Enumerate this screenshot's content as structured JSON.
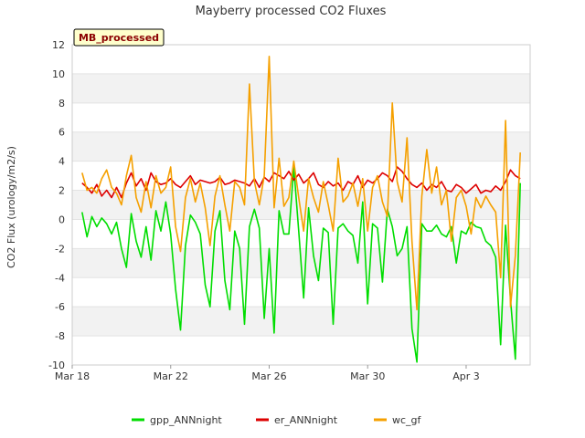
{
  "chart_data": {
    "type": "line",
    "title": "Mayberry processed CO2 Fluxes",
    "ylabel": "CO2 Flux (urology/m2/s)",
    "xlabel": "",
    "tag": "MB_processed",
    "ylim": [
      -10,
      12
    ],
    "yticks": [
      -10,
      -8,
      -6,
      -4,
      -2,
      0,
      2,
      4,
      6,
      8,
      10,
      12
    ],
    "x_range_days": [
      0,
      18.6
    ],
    "xticks": [
      {
        "day": 0,
        "label": "Mar 18"
      },
      {
        "day": 4,
        "label": "Mar 22"
      },
      {
        "day": 8,
        "label": "Mar 26"
      },
      {
        "day": 12,
        "label": "Mar 30"
      },
      {
        "day": 16,
        "label": "Apr 3"
      }
    ],
    "grid": "horizontal-bands",
    "legend_position": "bottom-center",
    "series": [
      {
        "name": "gpp_ANNnight",
        "color": "#00dd00",
        "x": [
          0.4,
          0.6,
          0.8,
          1.0,
          1.2,
          1.4,
          1.6,
          1.8,
          2.0,
          2.2,
          2.4,
          2.6,
          2.8,
          3.0,
          3.2,
          3.4,
          3.6,
          3.8,
          4.0,
          4.2,
          4.4,
          4.6,
          4.8,
          5.0,
          5.2,
          5.4,
          5.6,
          5.8,
          6.0,
          6.2,
          6.4,
          6.6,
          6.8,
          7.0,
          7.2,
          7.4,
          7.6,
          7.8,
          8.0,
          8.2,
          8.4,
          8.6,
          8.8,
          9.0,
          9.2,
          9.4,
          9.6,
          9.8,
          10.0,
          10.2,
          10.4,
          10.6,
          10.8,
          11.0,
          11.2,
          11.4,
          11.6,
          11.8,
          12.0,
          12.2,
          12.4,
          12.6,
          12.8,
          13.0,
          13.2,
          13.4,
          13.6,
          13.8,
          14.0,
          14.2,
          14.4,
          14.6,
          14.8,
          15.0,
          15.2,
          15.4,
          15.6,
          15.8,
          16.0,
          16.2,
          16.4,
          16.6,
          16.8,
          17.0,
          17.2,
          17.4,
          17.6,
          17.8,
          18.0,
          18.2
        ],
        "y": [
          0.5,
          -1.2,
          0.2,
          -0.5,
          0.1,
          -0.3,
          -1.0,
          -0.2,
          -2.0,
          -3.3,
          0.4,
          -1.5,
          -2.6,
          -0.5,
          -2.8,
          0.6,
          -0.8,
          1.2,
          -1.0,
          -4.8,
          -7.6,
          -1.8,
          0.3,
          -0.2,
          -1.0,
          -4.5,
          -6.0,
          -0.8,
          0.6,
          -4.2,
          -6.2,
          -0.8,
          -2.0,
          -7.2,
          -0.5,
          0.7,
          -0.6,
          -6.8,
          -2.0,
          -7.8,
          0.6,
          -1.0,
          -1.0,
          3.6,
          -0.8,
          -5.4,
          0.8,
          -2.5,
          -4.2,
          -0.6,
          -0.9,
          -7.2,
          -0.6,
          -0.3,
          -0.8,
          -1.1,
          -3.0,
          1.2,
          -5.8,
          -0.3,
          -0.6,
          -4.3,
          0.7,
          -0.5,
          -2.5,
          -2.0,
          -0.5,
          -7.5,
          -9.8,
          -0.3,
          -0.8,
          -0.8,
          -0.4,
          -1.0,
          -1.2,
          -0.5,
          -3.0,
          -0.8,
          -1.0,
          -0.2,
          -0.5,
          -0.6,
          -1.5,
          -1.8,
          -2.6,
          -8.6,
          -0.4,
          -5.5,
          -9.6,
          2.5
        ]
      },
      {
        "name": "er_ANNnight",
        "color": "#dd0000",
        "x": [
          0.4,
          0.6,
          0.8,
          1.0,
          1.2,
          1.4,
          1.6,
          1.8,
          2.0,
          2.2,
          2.4,
          2.6,
          2.8,
          3.0,
          3.2,
          3.4,
          3.6,
          3.8,
          4.0,
          4.2,
          4.4,
          4.6,
          4.8,
          5.0,
          5.2,
          5.4,
          5.6,
          5.8,
          6.0,
          6.2,
          6.4,
          6.6,
          6.8,
          7.0,
          7.2,
          7.4,
          7.6,
          7.8,
          8.0,
          8.2,
          8.4,
          8.6,
          8.8,
          9.0,
          9.2,
          9.4,
          9.6,
          9.8,
          10.0,
          10.2,
          10.4,
          10.6,
          10.8,
          11.0,
          11.2,
          11.4,
          11.6,
          11.8,
          12.0,
          12.2,
          12.4,
          12.6,
          12.8,
          13.0,
          13.2,
          13.4,
          13.6,
          13.8,
          14.0,
          14.2,
          14.4,
          14.6,
          14.8,
          15.0,
          15.2,
          15.4,
          15.6,
          15.8,
          16.0,
          16.2,
          16.4,
          16.6,
          16.8,
          17.0,
          17.2,
          17.4,
          17.6,
          17.8,
          18.0,
          18.2
        ],
        "y": [
          2.5,
          2.2,
          1.8,
          2.4,
          1.6,
          2.0,
          1.5,
          2.2,
          1.5,
          2.5,
          3.2,
          2.3,
          2.8,
          2.0,
          3.2,
          2.6,
          2.4,
          2.5,
          2.8,
          2.4,
          2.2,
          2.6,
          3.0,
          2.4,
          2.7,
          2.6,
          2.5,
          2.6,
          2.9,
          2.4,
          2.5,
          2.7,
          2.6,
          2.5,
          2.3,
          2.8,
          2.2,
          2.9,
          2.6,
          3.2,
          3.0,
          2.8,
          3.3,
          2.7,
          3.1,
          2.5,
          2.8,
          3.2,
          2.4,
          2.2,
          2.6,
          2.3,
          2.5,
          2.0,
          2.6,
          2.4,
          3.0,
          2.2,
          2.7,
          2.5,
          2.8,
          3.2,
          3.0,
          2.6,
          3.6,
          3.3,
          2.8,
          2.4,
          2.2,
          2.5,
          2.0,
          2.4,
          2.2,
          2.6,
          2.0,
          1.9,
          2.4,
          2.2,
          1.8,
          2.1,
          2.4,
          1.8,
          2.0,
          1.9,
          2.3,
          2.0,
          2.6,
          3.4,
          3.0,
          2.8
        ]
      },
      {
        "name": "wc_gf",
        "color": "#f5a000",
        "x": [
          0.4,
          0.6,
          0.8,
          1.0,
          1.2,
          1.4,
          1.6,
          1.8,
          2.0,
          2.2,
          2.4,
          2.6,
          2.8,
          3.0,
          3.2,
          3.4,
          3.6,
          3.8,
          4.0,
          4.2,
          4.4,
          4.6,
          4.8,
          5.0,
          5.2,
          5.4,
          5.6,
          5.8,
          6.0,
          6.2,
          6.4,
          6.6,
          6.8,
          7.0,
          7.2,
          7.4,
          7.6,
          7.8,
          8.0,
          8.2,
          8.4,
          8.6,
          8.8,
          9.0,
          9.2,
          9.4,
          9.6,
          9.8,
          10.0,
          10.2,
          10.4,
          10.6,
          10.8,
          11.0,
          11.2,
          11.4,
          11.6,
          11.8,
          12.0,
          12.2,
          12.4,
          12.6,
          12.8,
          13.0,
          13.2,
          13.4,
          13.6,
          13.8,
          14.0,
          14.2,
          14.4,
          14.6,
          14.8,
          15.0,
          15.2,
          15.4,
          15.6,
          15.8,
          16.0,
          16.2,
          16.4,
          16.6,
          16.8,
          17.0,
          17.2,
          17.4,
          17.6,
          17.8,
          18.0,
          18.2
        ],
        "y": [
          3.2,
          2.0,
          2.2,
          1.8,
          2.8,
          3.4,
          2.2,
          1.8,
          1.0,
          3.0,
          4.4,
          1.5,
          0.5,
          2.6,
          0.8,
          3.0,
          1.8,
          2.2,
          3.6,
          -0.5,
          -2.2,
          1.5,
          2.8,
          1.2,
          2.5,
          0.8,
          -1.8,
          1.6,
          3.0,
          1.0,
          -0.8,
          2.6,
          2.2,
          1.0,
          9.3,
          2.6,
          1.0,
          3.0,
          11.2,
          0.8,
          4.2,
          0.9,
          1.5,
          4.0,
          1.5,
          -0.8,
          2.8,
          1.5,
          0.5,
          2.6,
          1.0,
          -0.8,
          4.2,
          1.2,
          1.6,
          2.5,
          0.9,
          2.8,
          -0.8,
          2.2,
          3.0,
          1.2,
          0.2,
          8.0,
          2.6,
          1.2,
          5.6,
          -1.5,
          -6.2,
          1.6,
          4.8,
          1.8,
          3.6,
          1.0,
          2.0,
          -1.5,
          1.5,
          2.0,
          0.9,
          -1.0,
          1.5,
          0.8,
          1.6,
          1.0,
          0.5,
          -4.0,
          6.8,
          -6.0,
          -2.5,
          4.6
        ]
      }
    ]
  }
}
